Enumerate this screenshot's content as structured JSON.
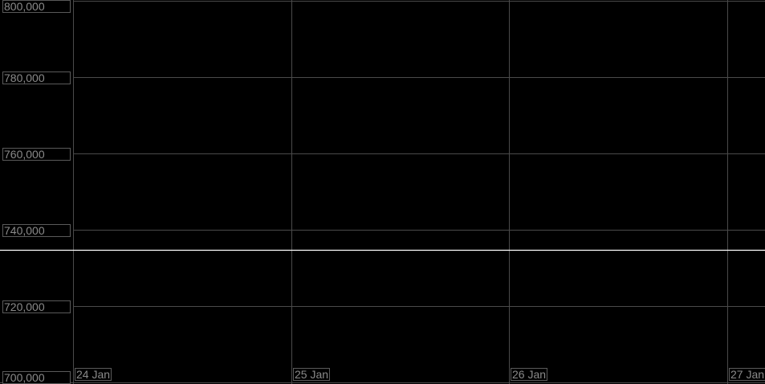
{
  "chart_data": {
    "type": "line",
    "title": "",
    "xlabel": "",
    "ylabel": "",
    "x_ticks": [
      "24 Jan",
      "25 Jan",
      "26 Jan",
      "27 Jan"
    ],
    "y_ticks": [
      "800,000",
      "780,000",
      "760,000",
      "740,000",
      "720,000",
      "700,000"
    ],
    "y_tick_values": [
      800000,
      780000,
      760000,
      740000,
      720000,
      700000
    ],
    "ylim": [
      700000,
      800000
    ],
    "xlim": [
      "24 Jan",
      "27 Jan+"
    ],
    "grid": true,
    "series": [
      {
        "values": [
          734700,
          734700,
          734700,
          734700
        ],
        "color": "#ffffff"
      }
    ],
    "background": "#000000",
    "grid_color": "#4a4a4a"
  }
}
